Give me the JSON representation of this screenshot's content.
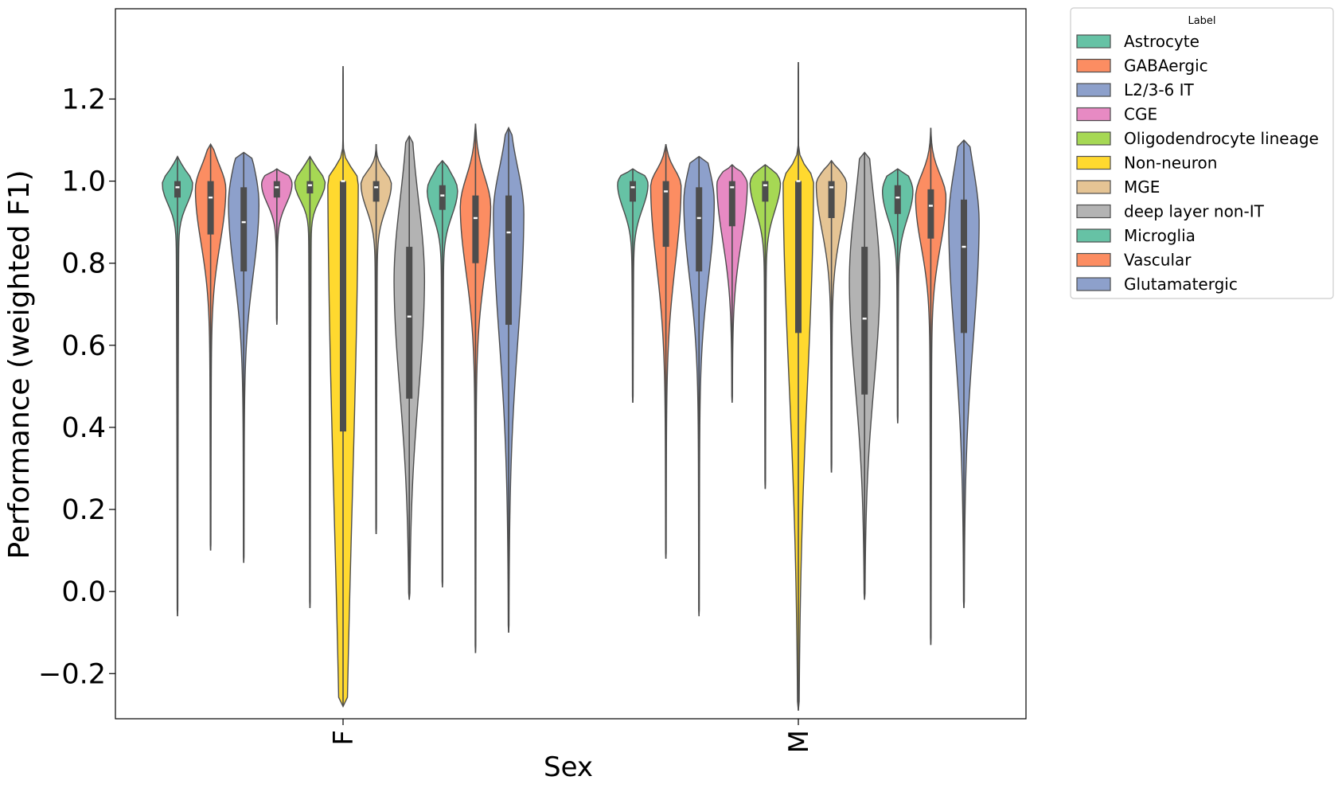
{
  "chart_data": {
    "type": "violin",
    "xlabel": "Sex",
    "ylabel": "Performance (weighted F1)",
    "categories": [
      "F",
      "M"
    ],
    "ylim": [
      -0.31,
      1.42
    ],
    "yticks": [
      -0.2,
      0.0,
      0.2,
      0.4,
      0.6,
      0.8,
      1.0,
      1.2
    ],
    "ytick_labels": [
      "−0.2",
      "0.0",
      "0.2",
      "0.4",
      "0.6",
      "0.8",
      "1.0",
      "1.2"
    ],
    "grid": false,
    "legend": {
      "title": "Label",
      "placement": "outside-top-right"
    },
    "series": [
      {
        "name": "Astrocyte",
        "color": "#66c2a5",
        "stats": [
          {
            "min": -0.06,
            "q1": 0.96,
            "median": 0.985,
            "q3": 1.0,
            "max": 1.06
          },
          {
            "min": 0.46,
            "q1": 0.95,
            "median": 0.985,
            "q3": 1.0,
            "max": 1.03
          }
        ]
      },
      {
        "name": "GABAergic",
        "color": "#fc8d62",
        "stats": [
          {
            "min": 0.1,
            "q1": 0.87,
            "median": 0.96,
            "q3": 1.0,
            "max": 1.09
          },
          {
            "min": 0.08,
            "q1": 0.84,
            "median": 0.975,
            "q3": 1.0,
            "max": 1.09
          }
        ]
      },
      {
        "name": "L2/3-6 IT",
        "color": "#8da0cb",
        "stats": [
          {
            "min": 0.07,
            "q1": 0.78,
            "median": 0.9,
            "q3": 0.985,
            "max": 1.07
          },
          {
            "min": -0.06,
            "q1": 0.78,
            "median": 0.91,
            "q3": 0.985,
            "max": 1.06
          }
        ]
      },
      {
        "name": "CGE",
        "color": "#e78ac3",
        "stats": [
          {
            "min": 0.65,
            "q1": 0.96,
            "median": 0.985,
            "q3": 1.0,
            "max": 1.03
          },
          {
            "min": 0.46,
            "q1": 0.89,
            "median": 0.985,
            "q3": 1.0,
            "max": 1.04
          }
        ]
      },
      {
        "name": "Oligodendrocyte lineage",
        "color": "#a6d854",
        "stats": [
          {
            "min": -0.04,
            "q1": 0.97,
            "median": 0.99,
            "q3": 1.0,
            "max": 1.06
          },
          {
            "min": 0.25,
            "q1": 0.95,
            "median": 0.99,
            "q3": 1.0,
            "max": 1.04
          }
        ]
      },
      {
        "name": "Non-neuron",
        "color": "#ffd92f",
        "stats": [
          {
            "min": -0.28,
            "q1": 0.39,
            "median": 1.0,
            "q3": 1.0,
            "max": 1.28
          },
          {
            "min": -0.29,
            "q1": 0.63,
            "median": 1.0,
            "q3": 1.0,
            "max": 1.29
          }
        ]
      },
      {
        "name": "MGE",
        "color": "#e5c494",
        "stats": [
          {
            "min": 0.14,
            "q1": 0.95,
            "median": 0.985,
            "q3": 1.0,
            "max": 1.09
          },
          {
            "min": 0.29,
            "q1": 0.91,
            "median": 0.985,
            "q3": 1.0,
            "max": 1.05
          }
        ]
      },
      {
        "name": "deep layer non-IT",
        "color": "#b3b3b3",
        "stats": [
          {
            "min": -0.02,
            "q1": 0.47,
            "median": 0.67,
            "q3": 0.84,
            "max": 1.11
          },
          {
            "min": -0.02,
            "q1": 0.48,
            "median": 0.665,
            "q3": 0.84,
            "max": 1.07
          }
        ]
      },
      {
        "name": "Microglia",
        "color": "#66c2a5",
        "stats": [
          {
            "min": 0.01,
            "q1": 0.93,
            "median": 0.965,
            "q3": 0.99,
            "max": 1.05
          },
          {
            "min": 0.41,
            "q1": 0.92,
            "median": 0.96,
            "q3": 0.99,
            "max": 1.03
          }
        ]
      },
      {
        "name": "Vascular",
        "color": "#fc8d62",
        "stats": [
          {
            "min": -0.15,
            "q1": 0.8,
            "median": 0.91,
            "q3": 0.965,
            "max": 1.14
          },
          {
            "min": -0.13,
            "q1": 0.86,
            "median": 0.94,
            "q3": 0.98,
            "max": 1.13
          }
        ]
      },
      {
        "name": "Glutamatergic",
        "color": "#8da0cb",
        "stats": [
          {
            "min": -0.1,
            "q1": 0.65,
            "median": 0.875,
            "q3": 0.965,
            "max": 1.13
          },
          {
            "min": -0.04,
            "q1": 0.63,
            "median": 0.84,
            "q3": 0.955,
            "max": 1.1
          }
        ]
      }
    ]
  }
}
